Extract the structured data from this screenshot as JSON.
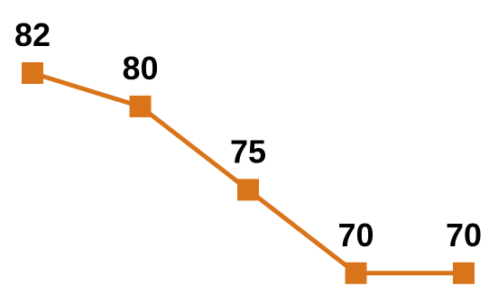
{
  "chart_data": {
    "type": "line",
    "categories": [
      "",
      "",
      "",
      "",
      ""
    ],
    "series": [
      {
        "values": [
          82,
          80,
          75,
          70,
          70
        ]
      }
    ],
    "data_labels": [
      "82",
      "80",
      "75",
      "70",
      "70"
    ],
    "ylim": [
      69.5,
      82
    ],
    "grid": false,
    "legend": "none",
    "marker": "square",
    "colors": {
      "series": "#D9741B",
      "label": "#000000"
    }
  }
}
